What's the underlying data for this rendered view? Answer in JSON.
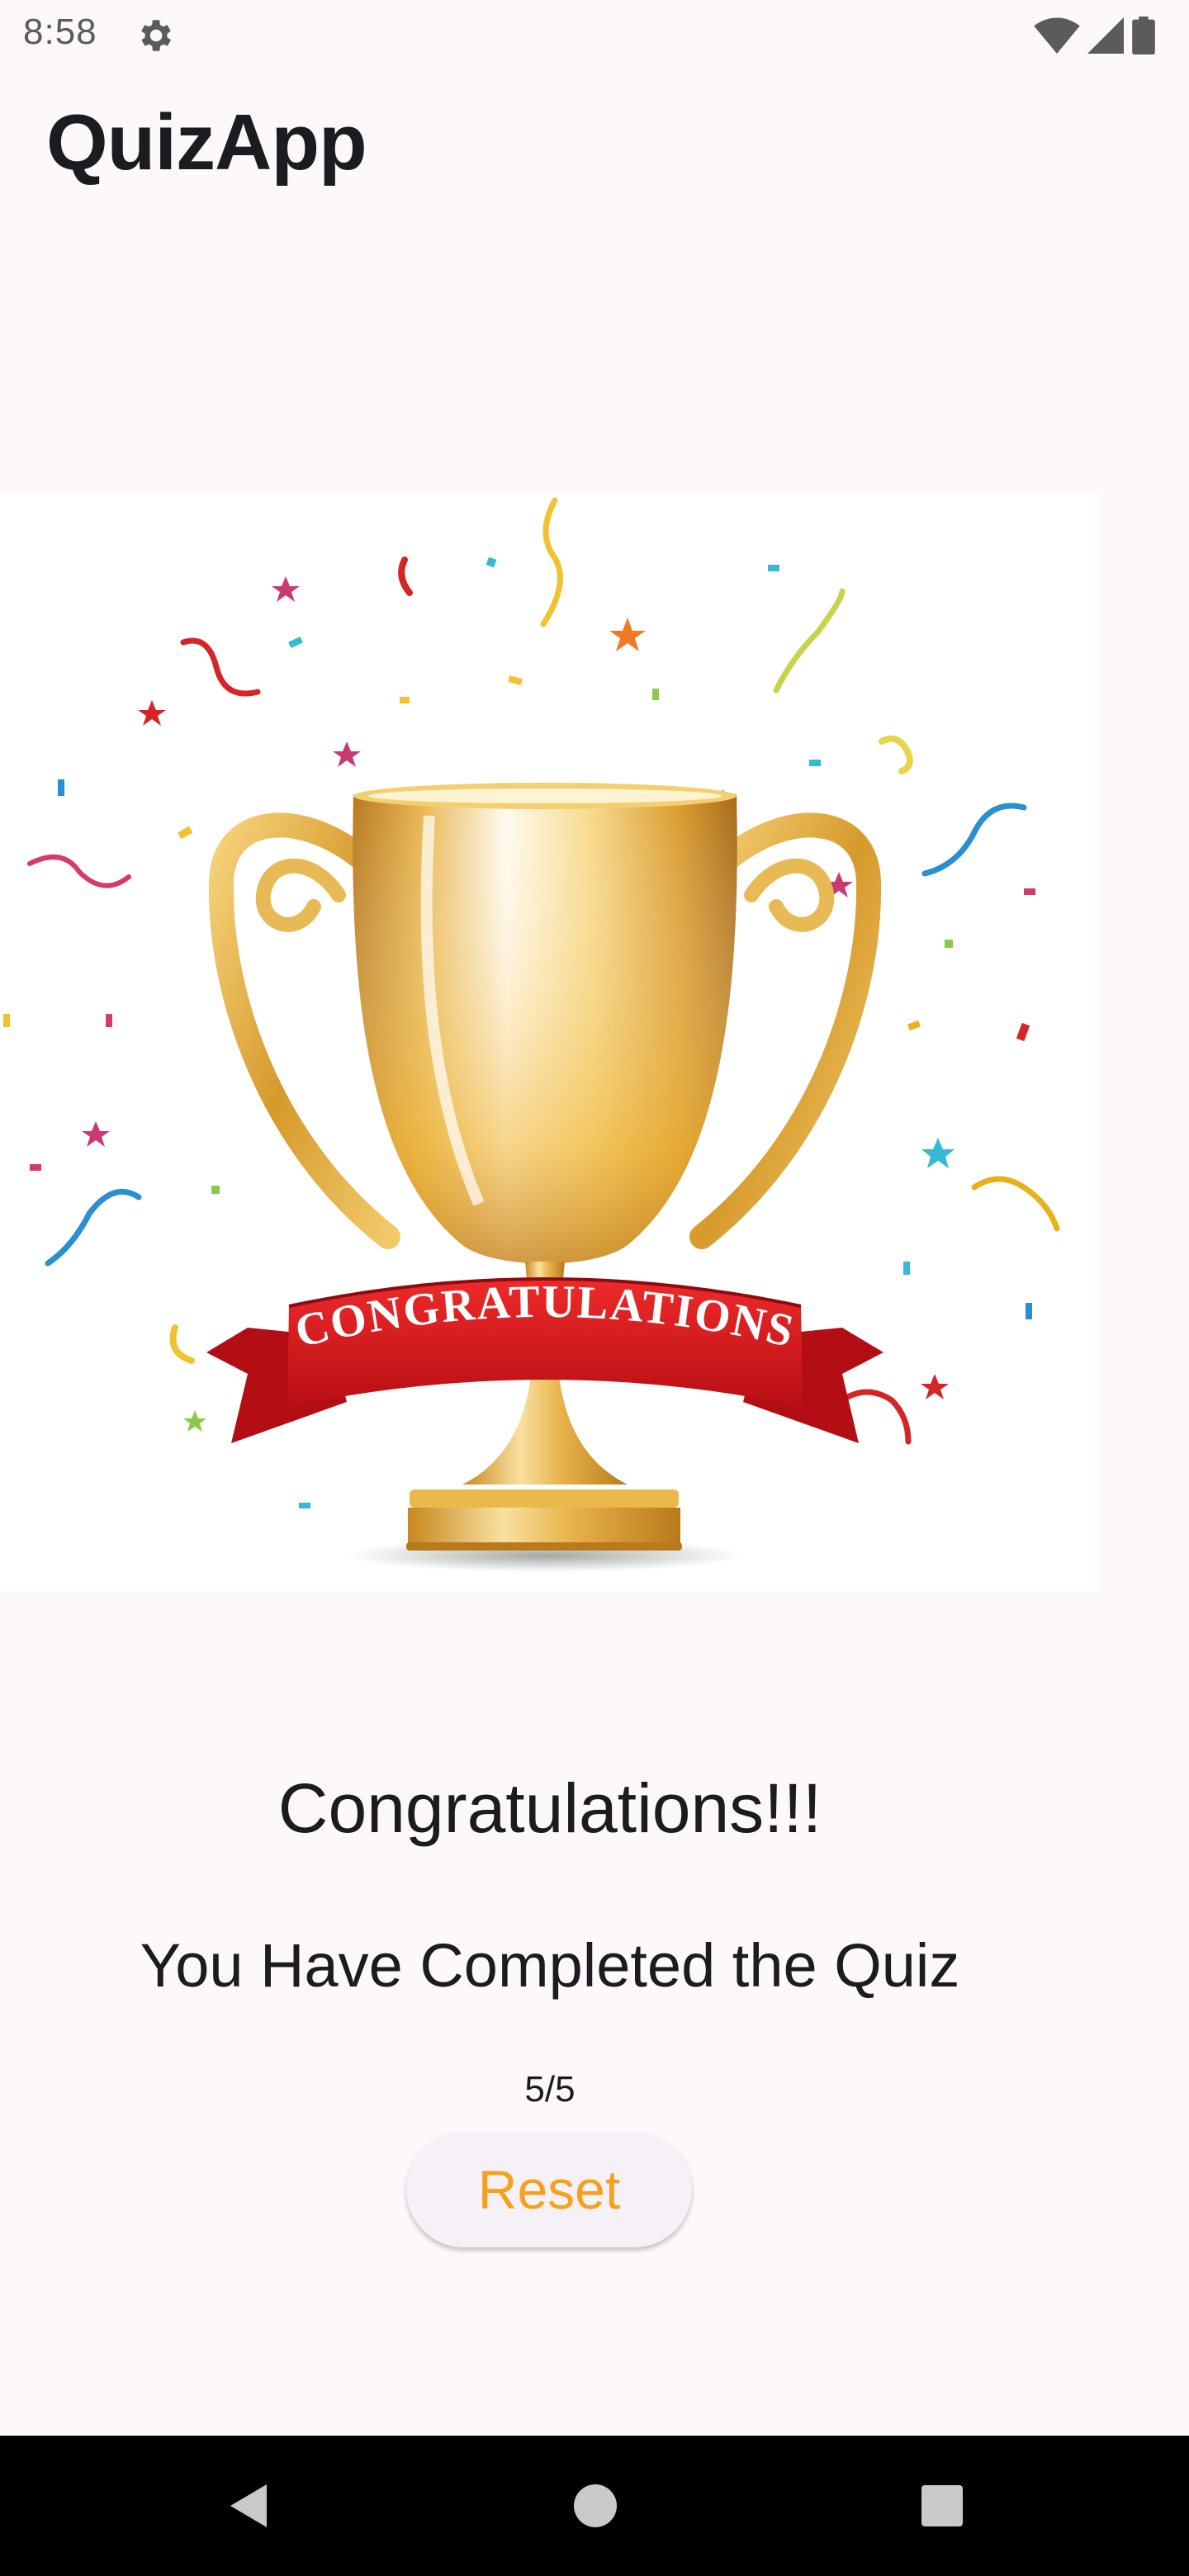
{
  "status_bar": {
    "time": "8:58",
    "icons": [
      "gear-icon",
      "wifi-icon",
      "signal-icon",
      "battery-icon"
    ]
  },
  "app_bar": {
    "title": "QuizApp"
  },
  "trophy_image": {
    "banner_text": "CONGRATULATIONS"
  },
  "result": {
    "heading": "Congratulations!!!",
    "message": "You Have Completed the Quiz",
    "score": "5/5",
    "reset_label": "Reset"
  },
  "colors": {
    "background": "#fdf8fc",
    "accent": "#f5a11d",
    "button_bg": "#f6f1f7",
    "banner_red": "#d7141d",
    "gold": "#e0b24c"
  },
  "nav_bar": {
    "icons": [
      "back-icon",
      "home-icon",
      "recents-icon"
    ]
  }
}
